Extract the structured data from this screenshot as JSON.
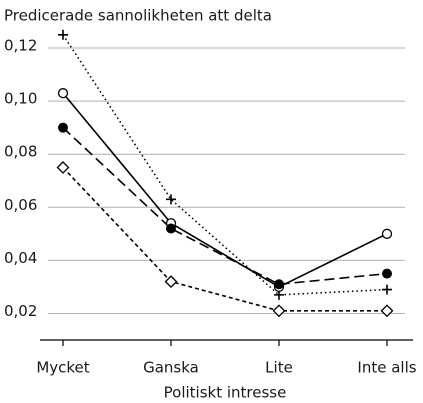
{
  "chart_data": {
    "type": "line",
    "title": "Predicerade sannolikheten att delta",
    "xlabel": "Politiskt intresse",
    "categories": [
      "Mycket",
      "Ganska",
      "Lite",
      "Inte alls"
    ],
    "series": [
      {
        "color": "#000000",
        "marker": "plus",
        "dash": "dotted",
        "values": [
          0.125,
          0.063,
          0.027,
          0.029
        ]
      },
      {
        "color": "#000000",
        "marker": "open-circle",
        "dash": "solid",
        "values": [
          0.103,
          0.054,
          0.03,
          0.05
        ]
      },
      {
        "color": "#000000",
        "marker": "filled-circle",
        "dash": "long-dash",
        "values": [
          0.09,
          0.052,
          0.031,
          0.035
        ]
      },
      {
        "color": "#000000",
        "marker": "open-diamond",
        "dash": "short-dash",
        "values": [
          0.075,
          0.032,
          0.021,
          0.021
        ]
      }
    ],
    "ylim": [
      0.01,
      0.13
    ],
    "yticks": [
      {
        "value": 0.02,
        "label": "0,02"
      },
      {
        "value": 0.04,
        "label": "0,04"
      },
      {
        "value": 0.06,
        "label": "0,06"
      },
      {
        "value": 0.08,
        "label": "0,08"
      },
      {
        "value": 0.1,
        "label": "0,10"
      },
      {
        "value": 0.12,
        "label": "0,12"
      }
    ],
    "grid": true
  }
}
